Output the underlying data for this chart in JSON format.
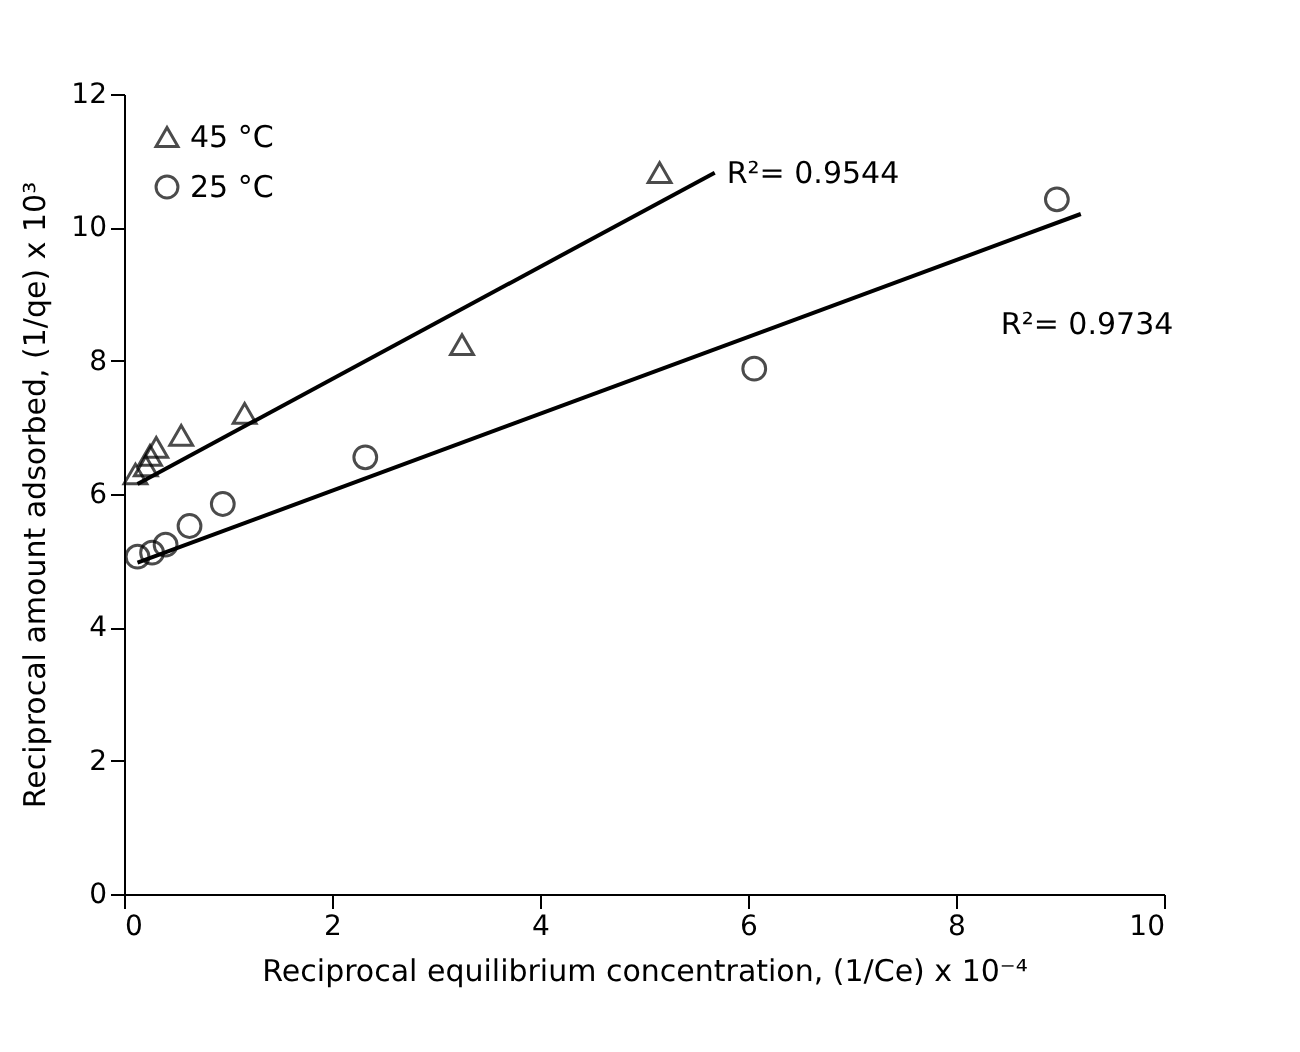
{
  "chart_data": {
    "type": "scatter",
    "xlabel": "Reciprocal equilibrium concentration, (1/Ce) x 10⁻⁴",
    "ylabel": "Reciprocal amount adsorbed, (1/qe) x 10³",
    "xlim": [
      0,
      10
    ],
    "xticks": [
      0,
      2,
      4,
      6,
      8,
      10
    ],
    "ylim": [
      0,
      12
    ],
    "yticks": [
      0,
      2,
      4,
      6,
      8,
      10,
      12
    ],
    "grid": false,
    "legend": "top left",
    "series": [
      {
        "name": "45 °C",
        "marker": "triangle",
        "color": "#000000",
        "x": [
          0.11,
          0.21,
          0.25,
          0.31,
          0.55,
          1.16,
          3.25,
          5.15
        ],
        "values": [
          6.3,
          6.42,
          6.58,
          6.7,
          6.88,
          7.21,
          8.24,
          10.82
        ]
      },
      {
        "name": "25 °C",
        "marker": "circle",
        "color": "#000000",
        "x": [
          0.13,
          0.27,
          0.4,
          0.63,
          0.95,
          2.32,
          6.06,
          8.97
        ],
        "values": [
          5.06,
          5.12,
          5.24,
          5.52,
          5.85,
          6.55,
          7.88,
          10.42
        ]
      },
      {
        "type": "line",
        "color": "#000000",
        "x": [
          0.13,
          5.68
        ],
        "values": [
          6.15,
          10.82
        ]
      },
      {
        "type": "line",
        "color": "#000000",
        "x": [
          0.13,
          9.2
        ],
        "values": [
          4.97,
          10.2
        ]
      }
    ],
    "annotations": [
      "R²= 0.9544",
      "R²= 0.9734"
    ]
  }
}
